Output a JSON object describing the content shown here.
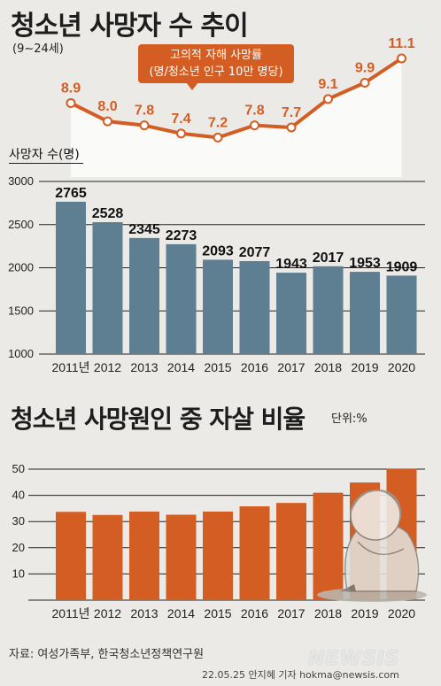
{
  "header": {
    "title": "청소년 사망자 수 추이",
    "subtitle": "(9∼24세)"
  },
  "callout": {
    "line1": "고의적 자해 사망률",
    "line2": "(명/청소년 인구 10만 명당)"
  },
  "section2": {
    "title": "청소년 사망원인 중 자살 비율",
    "unit": "단위:%"
  },
  "footer": {
    "source": "자료: 여성가족부, 한국청소년정책연구원",
    "credit": "22.05.25 안지혜 기자 hokma@newsis.com",
    "logo": "NEWSIS"
  },
  "colors": {
    "bar_blue": "#5e7f91",
    "bar_orange": "#d35d22",
    "line_orange": "#d35d22",
    "background": "#ebeae6"
  },
  "chart_data": [
    {
      "type": "line",
      "title": "고의적 자해 사망률",
      "x": [
        "2011",
        "2012",
        "2013",
        "2014",
        "2015",
        "2016",
        "2017",
        "2018",
        "2019",
        "2020"
      ],
      "values": [
        8.9,
        8.0,
        7.8,
        7.4,
        7.2,
        7.8,
        7.7,
        9.1,
        9.9,
        11.1
      ],
      "value_labels": [
        "8.9",
        "8.0",
        "7.8",
        "7.4",
        "7.2",
        "7.8",
        "7.7",
        "9.1",
        "9.9",
        "11.1"
      ]
    },
    {
      "type": "bar",
      "ylabel": "사망자 수(명)",
      "categories": [
        "2011년",
        "2012",
        "2013",
        "2014",
        "2015",
        "2016",
        "2017",
        "2018",
        "2019",
        "2020"
      ],
      "values": [
        2765,
        2528,
        2345,
        2273,
        2093,
        2077,
        1943,
        2017,
        1953,
        1909
      ],
      "value_labels": [
        "2765",
        "2528",
        "2345",
        "2273",
        "2093",
        "2077",
        "1943",
        "2017",
        "1953",
        "1909"
      ],
      "ylim": [
        1000,
        3000
      ],
      "yticks": [
        1000,
        1500,
        2000,
        2500,
        3000
      ],
      "ytick_labels": [
        "1000",
        "1500",
        "2000",
        "2500",
        "3000"
      ]
    },
    {
      "type": "bar",
      "categories": [
        "2011년",
        "2012",
        "2013",
        "2014",
        "2015",
        "2016",
        "2017",
        "2018",
        "2019",
        "2020"
      ],
      "values": [
        33.7,
        32.5,
        33.8,
        32.6,
        33.8,
        35.8,
        37.1,
        41.0,
        44.9,
        50.1
      ],
      "value_labels": [
        "33.7",
        "32.5",
        "33.8",
        "32.6",
        "33.8",
        "35.8",
        "37.1",
        "41.0",
        "44.9",
        "50.1"
      ],
      "ylim": [
        0,
        50
      ],
      "yticks": [
        10,
        20,
        30,
        40,
        50
      ],
      "ytick_labels": [
        "10",
        "20",
        "30",
        "40",
        "50"
      ]
    }
  ]
}
